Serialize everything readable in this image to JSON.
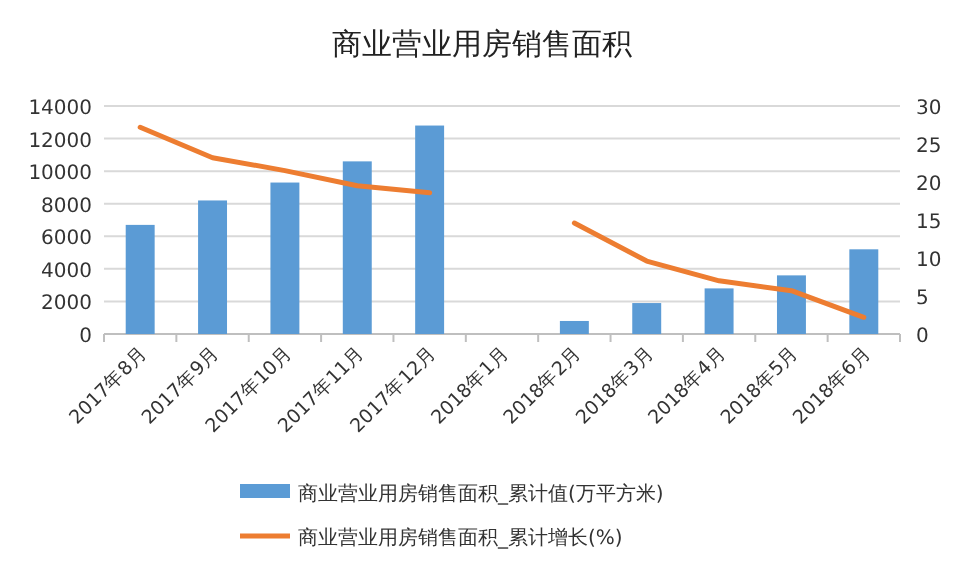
{
  "chart_data": {
    "type": "bar",
    "title": "商业营业用房销售面积",
    "categories": [
      "2017年8月",
      "2017年9月",
      "2017年10月",
      "2017年11月",
      "2017年12月",
      "2018年1月",
      "2018年2月",
      "2018年3月",
      "2018年4月",
      "2018年5月",
      "2018年6月"
    ],
    "series": [
      {
        "name": "商业营业用房销售面积_累计值(万平方米)",
        "color": "#5b9bd5",
        "values": [
          6700,
          8200,
          9300,
          10600,
          12800,
          null,
          800,
          1900,
          2800,
          3600,
          5200
        ]
      },
      {
        "name": "商业营业用房销售面积_累计增长(%)",
        "type": "line",
        "axis": "y2",
        "color": "#ed7d31",
        "values": [
          27.2,
          23.2,
          21.5,
          19.5,
          18.6,
          null,
          14.6,
          9.6,
          7.0,
          5.7,
          2.2
        ]
      }
    ],
    "ylim": [
      0,
      14000
    ],
    "yticks": [
      0,
      2000,
      4000,
      6000,
      8000,
      10000,
      12000,
      14000
    ],
    "y2lim": [
      0,
      30
    ],
    "y2ticks": [
      0,
      5,
      10,
      15,
      20,
      25,
      30
    ],
    "grid": "y",
    "legend": "bottom",
    "marker": "none"
  }
}
